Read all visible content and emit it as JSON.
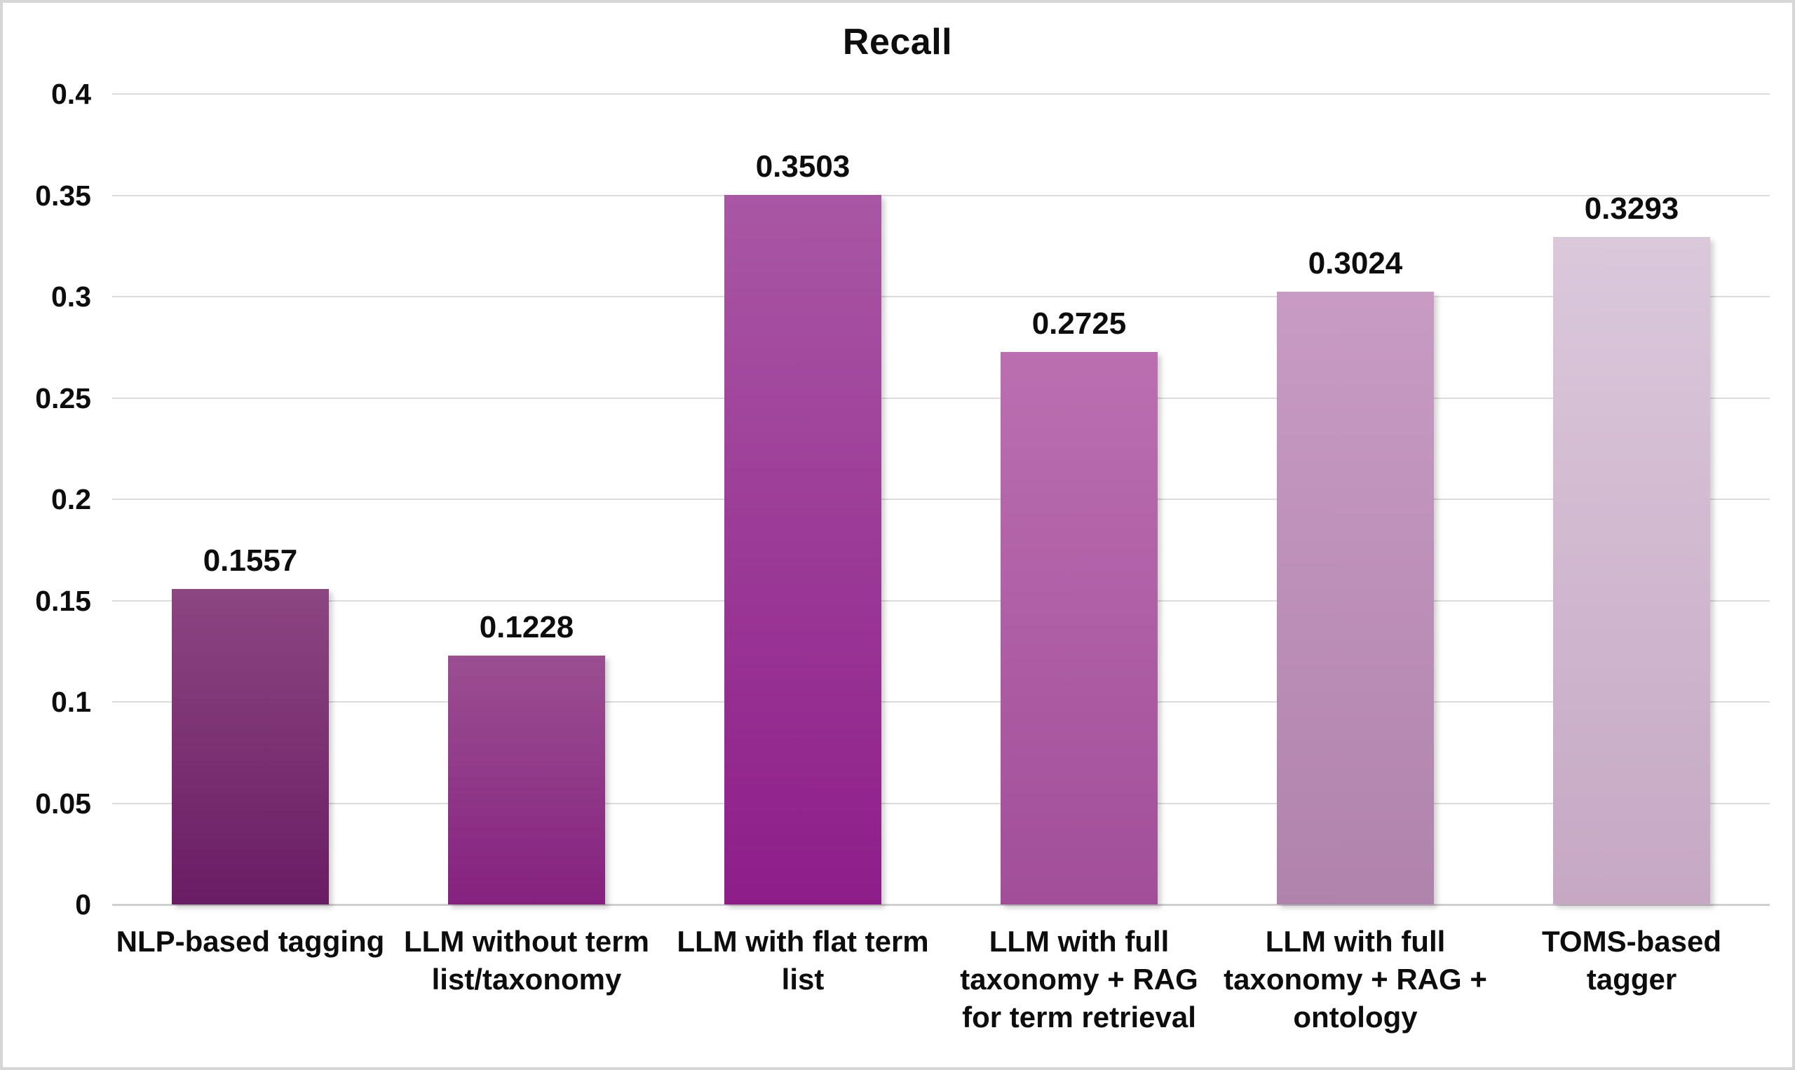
{
  "chart_data": {
    "type": "bar",
    "title": "Recall",
    "xlabel": "",
    "ylabel": "",
    "categories": [
      "NLP-based tagging",
      "LLM without term list/taxonomy",
      "LLM with flat term list",
      "LLM with full taxonomy + RAG for term retrieval",
      "LLM with full taxonomy + RAG + ontology",
      "TOMS-based tagger"
    ],
    "category_display": [
      "NLP-based tagging",
      "LLM without term\nlist/taxonomy",
      "LLM with flat term\nlist",
      "LLM with full\ntaxonomy + RAG\nfor term retrieval",
      "LLM with full\ntaxonomy + RAG +\nontology",
      "TOMS-based\ntagger"
    ],
    "values": [
      0.1557,
      0.1228,
      0.3503,
      0.2725,
      0.3024,
      0.3293
    ],
    "value_labels": [
      "0.1557",
      "0.1228",
      "0.3503",
      "0.2725",
      "0.3024",
      "0.3293"
    ],
    "ylim": [
      0,
      0.4
    ],
    "ytick_step": 0.05,
    "ytick_labels": [
      "0.4",
      "0.35",
      "0.3",
      "0.25",
      "0.2",
      "0.15",
      "0.1",
      "0.05",
      "0"
    ],
    "grid": "horizontal",
    "legend": "none",
    "colors": {
      "bar_gradients": [
        {
          "top": "#8C4681",
          "bottom": "#6A1C64"
        },
        {
          "top": "#9B4F91",
          "bottom": "#85217F"
        },
        {
          "top": "#A957A4",
          "bottom": "#8E1D8A"
        },
        {
          "top": "#BB6FB1",
          "bottom": "#A24E99"
        },
        {
          "top": "#C89BC4",
          "bottom": "#B083AC"
        },
        {
          "top": "#DBC8DB",
          "bottom": "#C6A8C4"
        }
      ],
      "gridline": "#dcdcdc",
      "axis_line": "#cfcfcf",
      "text": "#0d0d0d",
      "background": "#ffffff",
      "frame_border": "#d6d6d6"
    }
  }
}
